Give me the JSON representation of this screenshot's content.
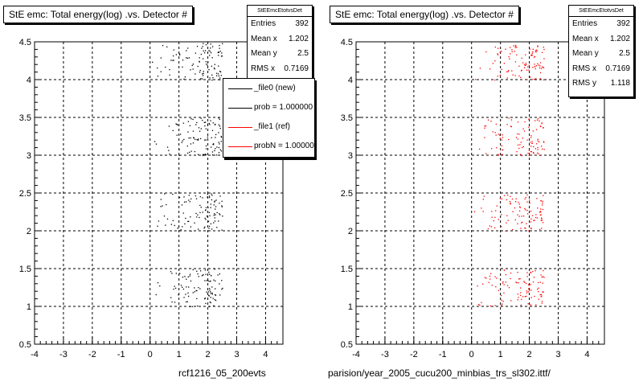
{
  "panels": [
    {
      "title": "StE emc: Total energy(log) .vs. Detector #",
      "stats": {
        "name": "StEEmcEtotvsDet",
        "rows": [
          {
            "label": "Entries",
            "value": "392"
          },
          {
            "label": "Mean x",
            "value": "1.202"
          },
          {
            "label": "Mean y",
            "value": "2.5"
          },
          {
            "label": "RMS x",
            "value": "0.7169"
          }
        ]
      },
      "legend": [
        {
          "label": "_file0 (new)",
          "color": "#000000"
        },
        {
          "label": "prob = 1.000000",
          "color": "#000000"
        },
        {
          "label": "_file1 (ref)",
          "color": "#ff0000"
        },
        {
          "label": "probN = 1.000000",
          "color": "#ff0000"
        }
      ],
      "file_label": "rcf1216_05_200evts"
    },
    {
      "title": "StE emc: Total energy(log) .vs. Detector #",
      "stats": {
        "name": "StEEmcEtotvsDet",
        "rows": [
          {
            "label": "Entries",
            "value": "392"
          },
          {
            "label": "Mean x",
            "value": "1.202"
          },
          {
            "label": "Mean y",
            "value": "2.5"
          },
          {
            "label": "RMS x",
            "value": "0.7169"
          },
          {
            "label": "RMS y",
            "value": "1.118"
          }
        ]
      },
      "file_label": "parision/year_2005_cucu200_minbias_trs_sl302.ittf/"
    }
  ],
  "chart_data": [
    {
      "type": "scatter",
      "title": "StE emc: Total energy(log) .vs. Detector #",
      "xlim": [
        -4,
        4.6
      ],
      "ylim": [
        0.5,
        4.5
      ],
      "x_ticks": [
        -4,
        -3,
        -2,
        -1,
        0,
        1,
        2,
        3,
        4
      ],
      "y_ticks": [
        0.5,
        1,
        1.5,
        2,
        2.5,
        3,
        3.5,
        4,
        4.5
      ],
      "grid": true,
      "series": [
        {
          "name": "_file0 (new)",
          "color": "#000000",
          "clusters": [
            {
              "y_center": 1.25,
              "y_spread": 0.25,
              "x_min": -0.5,
              "x_max": 2.5,
              "count": 98
            },
            {
              "y_center": 2.25,
              "y_spread": 0.25,
              "x_min": -0.5,
              "x_max": 2.5,
              "count": 98
            },
            {
              "y_center": 3.25,
              "y_spread": 0.25,
              "x_min": -0.5,
              "x_max": 2.5,
              "count": 98
            },
            {
              "y_center": 4.25,
              "y_spread": 0.25,
              "x_min": -0.5,
              "x_max": 2.5,
              "count": 98
            }
          ]
        }
      ]
    },
    {
      "type": "scatter",
      "title": "StE emc: Total energy(log) .vs. Detector #",
      "xlim": [
        -4,
        4.6
      ],
      "ylim": [
        0.5,
        4.5
      ],
      "x_ticks": [
        -4,
        -3,
        -2,
        -1,
        0,
        1,
        2,
        3,
        4
      ],
      "y_ticks": [
        0.5,
        1,
        1.5,
        2,
        2.5,
        3,
        3.5,
        4,
        4.5
      ],
      "grid": true,
      "series": [
        {
          "name": "_file1 (ref)",
          "color": "#ff0000",
          "clusters": [
            {
              "y_center": 1.25,
              "y_spread": 0.25,
              "x_min": -0.5,
              "x_max": 2.5,
              "count": 98
            },
            {
              "y_center": 2.25,
              "y_spread": 0.25,
              "x_min": -0.5,
              "x_max": 2.5,
              "count": 98
            },
            {
              "y_center": 3.25,
              "y_spread": 0.25,
              "x_min": -0.5,
              "x_max": 2.5,
              "count": 98
            },
            {
              "y_center": 4.25,
              "y_spread": 0.25,
              "x_min": -0.5,
              "x_max": 2.5,
              "count": 98
            }
          ]
        }
      ]
    }
  ]
}
